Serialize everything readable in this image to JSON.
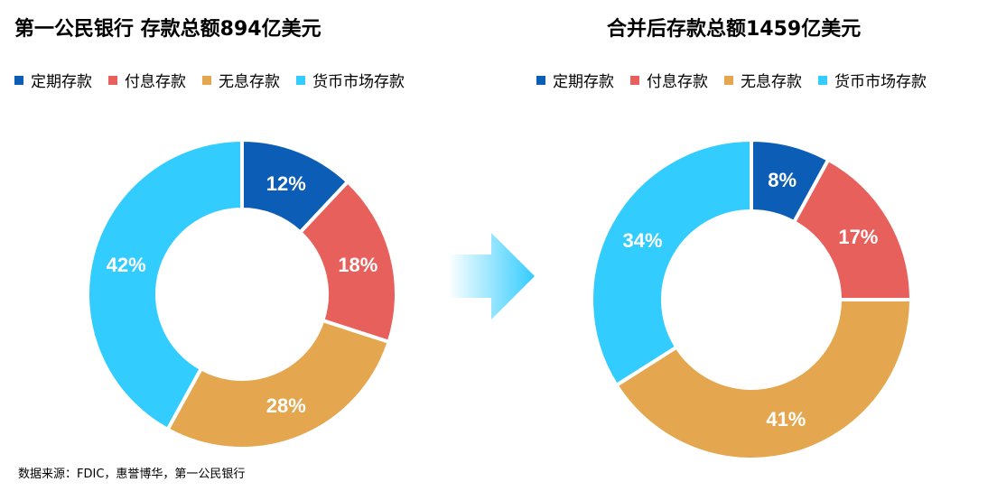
{
  "chart_data": [
    {
      "type": "pie",
      "title": "第一公民银行  存款总额894亿美元",
      "categories": [
        "定期存款",
        "付息存款",
        "无息存款",
        "货币市场存款"
      ],
      "values": [
        12,
        18,
        28,
        42
      ],
      "data_labels": [
        "12%",
        "18%",
        "28%",
        "42%"
      ],
      "donut": true,
      "legend_position": "top"
    },
    {
      "type": "pie",
      "title": "合并后存款总额1459亿美元",
      "categories": [
        "定期存款",
        "付息存款",
        "无息存款",
        "货币市场存款"
      ],
      "values": [
        8,
        17,
        41,
        34
      ],
      "data_labels": [
        "8%",
        "17%",
        "41%",
        "34%"
      ],
      "donut": true,
      "legend_position": "top"
    }
  ],
  "colors": {
    "定期存款": "#0C5DB5",
    "付息存款": "#E8605C",
    "无息存款": "#E4A64E",
    "货币市场存款": "#33CCFF",
    "arrow": "#33CCFF"
  },
  "source": "数据来源：FDIC，惠誉博华，第一公民银行"
}
